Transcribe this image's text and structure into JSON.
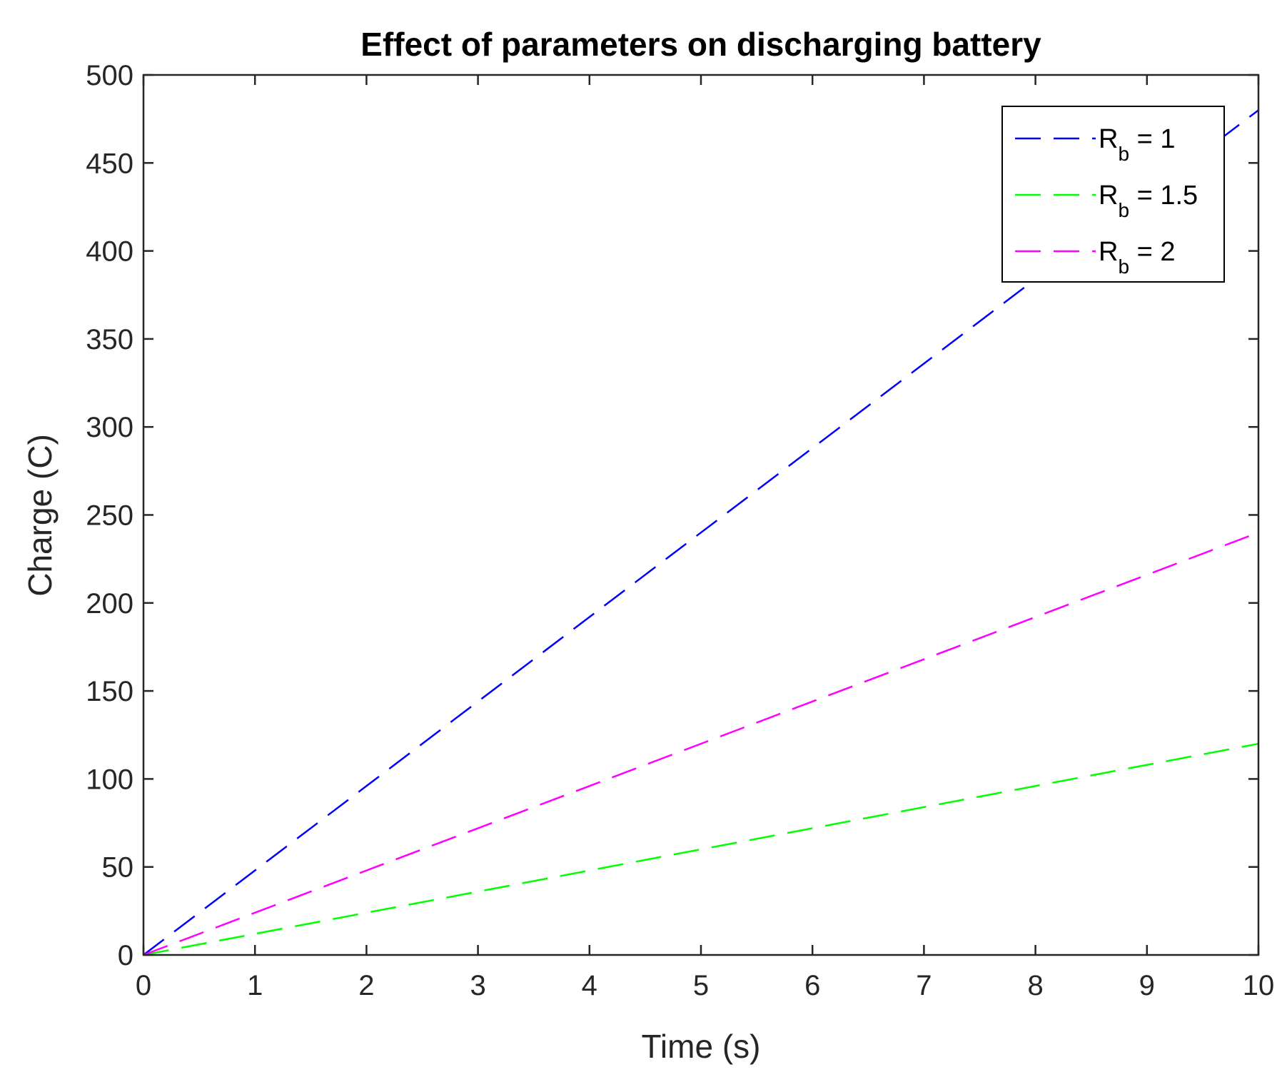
{
  "chart_data": {
    "type": "line",
    "title": "Effect of parameters on discharging battery",
    "xlabel": "Time (s)",
    "ylabel": "Charge (C)",
    "xlim": [
      0,
      10
    ],
    "ylim": [
      0,
      500
    ],
    "xticks": [
      0,
      1,
      2,
      3,
      4,
      5,
      6,
      7,
      8,
      9,
      10
    ],
    "yticks": [
      0,
      50,
      100,
      150,
      200,
      250,
      300,
      350,
      400,
      450,
      500
    ],
    "grid": false,
    "legend_position": "top-right",
    "series": [
      {
        "name": "R_b = 1",
        "label_main": "R",
        "label_sub": "b",
        "label_rest": " = 1",
        "color": "#0000ff",
        "dash": "dashed",
        "x": [
          0,
          10
        ],
        "y": [
          0,
          480
        ]
      },
      {
        "name": "R_b = 1.5",
        "label_main": "R",
        "label_sub": "b",
        "label_rest": " = 1.5",
        "color": "#00ff00",
        "dash": "dashed",
        "x": [
          0,
          10
        ],
        "y": [
          0,
          120
        ]
      },
      {
        "name": "R_b = 2",
        "label_main": "R",
        "label_sub": "b",
        "label_rest": " = 2",
        "color": "#ff00ff",
        "dash": "dashed",
        "x": [
          0,
          10
        ],
        "y": [
          0,
          240
        ]
      }
    ]
  }
}
